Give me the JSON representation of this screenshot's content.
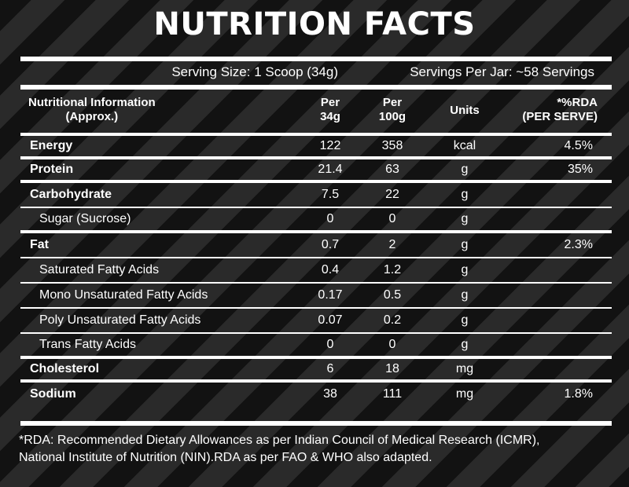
{
  "title": "NUTRITION FACTS",
  "serving": {
    "size": "Serving Size: 1 Scoop (34g)",
    "per_jar": "Servings Per Jar: ~58 Servings"
  },
  "header": {
    "info_line1": "Nutritional Information",
    "info_line2": "(Approx.)",
    "per34_line1": "Per",
    "per34_line2": "34g",
    "per100_line1": "Per",
    "per100_line2": "100g",
    "units": "Units",
    "rda_line1": "*%RDA",
    "rda_line2": "(PER SERVE)"
  },
  "rows": [
    {
      "name": "Energy",
      "per34": "122",
      "per100": "358",
      "unit": "kcal",
      "rda": "4.5%"
    },
    {
      "name": "Protein",
      "per34": "21.4",
      "per100": "63",
      "unit": "g",
      "rda": "35%"
    },
    {
      "name": "Carbohydrate",
      "per34": "7.5",
      "per100": "22",
      "unit": "g",
      "rda": ""
    },
    {
      "name": "Sugar (Sucrose)",
      "per34": "0",
      "per100": "0",
      "unit": "g",
      "rda": ""
    },
    {
      "name": "Fat",
      "per34": "0.7",
      "per100": "2",
      "unit": "g",
      "rda": "2.3%"
    },
    {
      "name": "Saturated Fatty Acids",
      "per34": "0.4",
      "per100": "1.2",
      "unit": "g",
      "rda": ""
    },
    {
      "name": "Mono Unsaturated Fatty Acids",
      "per34": "0.17",
      "per100": "0.5",
      "unit": "g",
      "rda": ""
    },
    {
      "name": "Poly Unsaturated Fatty Acids",
      "per34": "0.07",
      "per100": "0.2",
      "unit": "g",
      "rda": ""
    },
    {
      "name": "Trans Fatty Acids",
      "per34": "0",
      "per100": "0",
      "unit": "g",
      "rda": ""
    },
    {
      "name": "Cholesterol",
      "per34": "6",
      "per100": "18",
      "unit": "mg",
      "rda": ""
    },
    {
      "name": "Sodium",
      "per34": "38",
      "per100": "111",
      "unit": "mg",
      "rda": "1.8%"
    }
  ],
  "footnote": {
    "line1": "*RDA: Recommended Dietary Allowances as per Indian Council of Medical Research (ICMR),",
    "line2": "National Institute of Nutrition (NIN).RDA as per FAO & WHO also adapted."
  }
}
